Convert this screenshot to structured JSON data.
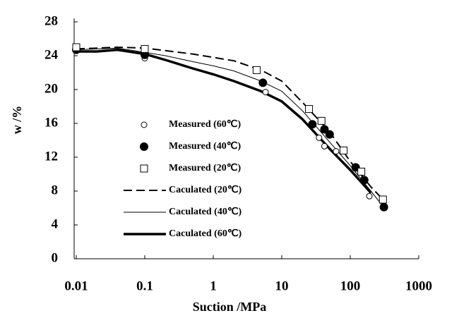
{
  "chart_data": {
    "type": "scatter-line",
    "x_label": "Suction /MPa",
    "y_label": "w /%",
    "xscale": "log",
    "xlim": [
      0.01,
      1000
    ],
    "xticks": [
      0.01,
      0.1,
      1,
      10,
      100,
      1000
    ],
    "ylim": [
      0,
      28
    ],
    "yticks": [
      0,
      4,
      8,
      12,
      16,
      20,
      24,
      28
    ],
    "grid": false,
    "legend": "center",
    "series": [
      {
        "name": "Measured (60℃)",
        "color": "#000000",
        "marker": "open-circle",
        "x": [
          0.01,
          0.1,
          5.8,
          35,
          42,
          62,
          190
        ],
        "values": [
          24.9,
          23.7,
          19.7,
          14.3,
          13.3,
          12.7,
          7.4
        ]
      },
      {
        "name": "Measured (40℃)",
        "color": "#000000",
        "marker": "filled-circle",
        "x": [
          0.01,
          0.1,
          5.3,
          28,
          42,
          50,
          120,
          160,
          310
        ],
        "values": [
          24.7,
          24.1,
          20.8,
          15.9,
          15.3,
          14.7,
          10.8,
          9.3,
          6.1
        ]
      },
      {
        "name": "Measured (20℃)",
        "color": "#000000",
        "marker": "open-square",
        "x": [
          0.01,
          0.1,
          4.3,
          25,
          38,
          80,
          145,
          300
        ],
        "values": [
          25.0,
          24.8,
          22.3,
          17.7,
          16.3,
          12.8,
          10.3,
          7.0
        ]
      },
      {
        "name": "Caculated (20℃)",
        "color": "#000000",
        "line_width": 2,
        "dash": true,
        "x": [
          0.01,
          0.02,
          0.04,
          0.1,
          0.2,
          0.5,
          1,
          2,
          5,
          10,
          20,
          50,
          100,
          200,
          300
        ],
        "values": [
          24.8,
          24.9,
          25.0,
          24.9,
          24.6,
          24.2,
          23.8,
          23.4,
          22.3,
          21.0,
          18.5,
          15.0,
          11.5,
          8.5,
          7.0
        ]
      },
      {
        "name": "Caculated (40℃)",
        "color": "#000000",
        "line_width": 1,
        "dash": false,
        "x": [
          0.01,
          0.02,
          0.04,
          0.1,
          0.2,
          0.5,
          1,
          2,
          5,
          10,
          20,
          50,
          100,
          200,
          300
        ],
        "values": [
          24.7,
          24.8,
          24.9,
          24.4,
          24.0,
          23.3,
          22.8,
          22.2,
          21.0,
          19.8,
          17.5,
          13.8,
          11.0,
          8.0,
          6.2
        ]
      },
      {
        "name": "Caculated (60℃)",
        "color": "#000000",
        "line_width": 3.5,
        "dash": false,
        "x": [
          0.01,
          0.02,
          0.04,
          0.1,
          0.2,
          0.5,
          1,
          2,
          5,
          10,
          20,
          50,
          100,
          200
        ],
        "values": [
          24.5,
          24.5,
          24.7,
          24.2,
          23.5,
          22.5,
          21.8,
          21.0,
          19.8,
          18.6,
          16.5,
          13.0,
          10.5,
          7.8
        ]
      }
    ]
  }
}
